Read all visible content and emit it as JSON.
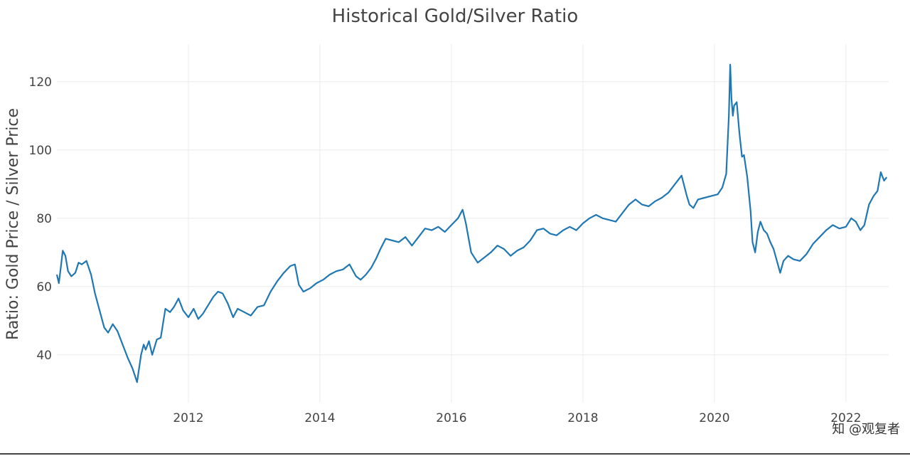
{
  "watermark": "知 @观复者",
  "chart_data": {
    "type": "line",
    "title": "Historical Gold/Silver Ratio",
    "xlabel": "",
    "ylabel": "Ratio: Gold Price / Silver Price",
    "xlim": [
      2010.0,
      2022.65
    ],
    "ylim": [
      26,
      131
    ],
    "x_ticks": [
      2012,
      2014,
      2016,
      2018,
      2020,
      2022
    ],
    "y_ticks": [
      40,
      60,
      80,
      100,
      120
    ],
    "grid": true,
    "legend": "none",
    "line_color": "#1f77b4",
    "series": [
      {
        "x": [
          2010.0,
          2010.03,
          2010.05,
          2010.09,
          2010.13,
          2010.17,
          2010.22,
          2010.28,
          2010.33,
          2010.38,
          2010.45,
          2010.52,
          2010.58,
          2010.65,
          2010.72,
          2010.78,
          2010.85,
          2010.92,
          2011.0,
          2011.08,
          2011.15,
          2011.22,
          2011.28,
          2011.32,
          2011.35,
          2011.4,
          2011.45,
          2011.52,
          2011.58,
          2011.65,
          2011.72,
          2011.78,
          2011.85,
          2011.92,
          2012.0,
          2012.08,
          2012.15,
          2012.22,
          2012.3,
          2012.38,
          2012.45,
          2012.52,
          2012.6,
          2012.68,
          2012.75,
          2012.85,
          2012.95,
          2013.05,
          2013.15,
          2013.25,
          2013.35,
          2013.45,
          2013.55,
          2013.62,
          2013.68,
          2013.75,
          2013.85,
          2013.95,
          2014.05,
          2014.15,
          2014.25,
          2014.35,
          2014.45,
          2014.55,
          2014.62,
          2014.7,
          2014.78,
          2014.85,
          2014.92,
          2015.0,
          2015.1,
          2015.2,
          2015.3,
          2015.4,
          2015.5,
          2015.6,
          2015.7,
          2015.8,
          2015.9,
          2016.0,
          2016.1,
          2016.17,
          2016.22,
          2016.3,
          2016.4,
          2016.5,
          2016.6,
          2016.7,
          2016.8,
          2016.9,
          2017.0,
          2017.1,
          2017.2,
          2017.3,
          2017.4,
          2017.5,
          2017.6,
          2017.7,
          2017.8,
          2017.9,
          2018.0,
          2018.1,
          2018.2,
          2018.3,
          2018.4,
          2018.5,
          2018.6,
          2018.7,
          2018.8,
          2018.9,
          2019.0,
          2019.1,
          2019.2,
          2019.3,
          2019.4,
          2019.5,
          2019.58,
          2019.62,
          2019.68,
          2019.75,
          2019.85,
          2019.95,
          2020.05,
          2020.12,
          2020.18,
          2020.22,
          2020.24,
          2020.26,
          2020.28,
          2020.3,
          2020.34,
          2020.38,
          2020.42,
          2020.45,
          2020.5,
          2020.55,
          2020.58,
          2020.62,
          2020.66,
          2020.7,
          2020.75,
          2020.8,
          2020.85,
          2020.9,
          2020.95,
          2021.0,
          2021.05,
          2021.12,
          2021.2,
          2021.3,
          2021.4,
          2021.5,
          2021.6,
          2021.7,
          2021.8,
          2021.9,
          2022.0,
          2022.08,
          2022.15,
          2022.22,
          2022.28,
          2022.35,
          2022.42,
          2022.48,
          2022.53,
          2022.58,
          2022.62
        ],
        "values": [
          63.5,
          61.0,
          64.0,
          70.5,
          69.0,
          64.5,
          63.0,
          64.0,
          67.0,
          66.5,
          67.5,
          63.5,
          58.0,
          53.0,
          48.0,
          46.5,
          49.0,
          47.0,
          43.0,
          39.0,
          36.0,
          32.0,
          40.0,
          43.0,
          41.5,
          44.0,
          40.0,
          44.5,
          45.0,
          53.5,
          52.5,
          54.0,
          56.5,
          53.0,
          51.0,
          53.5,
          50.5,
          52.0,
          54.5,
          57.0,
          58.5,
          58.0,
          55.0,
          51.0,
          53.5,
          52.5,
          51.5,
          54.0,
          54.5,
          58.5,
          61.5,
          64.0,
          66.0,
          66.5,
          60.5,
          58.5,
          59.5,
          61.0,
          62.0,
          63.5,
          64.5,
          65.0,
          66.5,
          63.0,
          62.0,
          63.5,
          65.5,
          68.0,
          71.0,
          74.0,
          73.5,
          73.0,
          74.5,
          72.0,
          74.5,
          77.0,
          76.5,
          77.5,
          76.0,
          78.0,
          80.0,
          82.5,
          78.5,
          70.0,
          67.0,
          68.5,
          70.0,
          72.0,
          71.0,
          69.0,
          70.5,
          71.5,
          73.5,
          76.5,
          77.0,
          75.5,
          75.0,
          76.5,
          77.5,
          76.5,
          78.5,
          80.0,
          81.0,
          80.0,
          79.5,
          79.0,
          81.5,
          84.0,
          85.5,
          84.0,
          83.5,
          85.0,
          86.0,
          87.5,
          90.0,
          92.5,
          86.5,
          84.0,
          83.0,
          85.5,
          86.0,
          86.5,
          87.0,
          89.0,
          93.0,
          110.0,
          125.0,
          115.0,
          110.0,
          113.0,
          114.0,
          105.0,
          98.0,
          98.5,
          92.0,
          82.0,
          73.0,
          70.0,
          76.0,
          79.0,
          76.5,
          75.5,
          73.0,
          71.0,
          67.5,
          64.0,
          67.5,
          69.0,
          68.0,
          67.5,
          69.5,
          72.5,
          74.5,
          76.5,
          78.0,
          77.0,
          77.5,
          80.0,
          79.0,
          76.5,
          78.0,
          84.0,
          86.5,
          88.0,
          93.5,
          91.0,
          92.0
        ]
      }
    ]
  }
}
